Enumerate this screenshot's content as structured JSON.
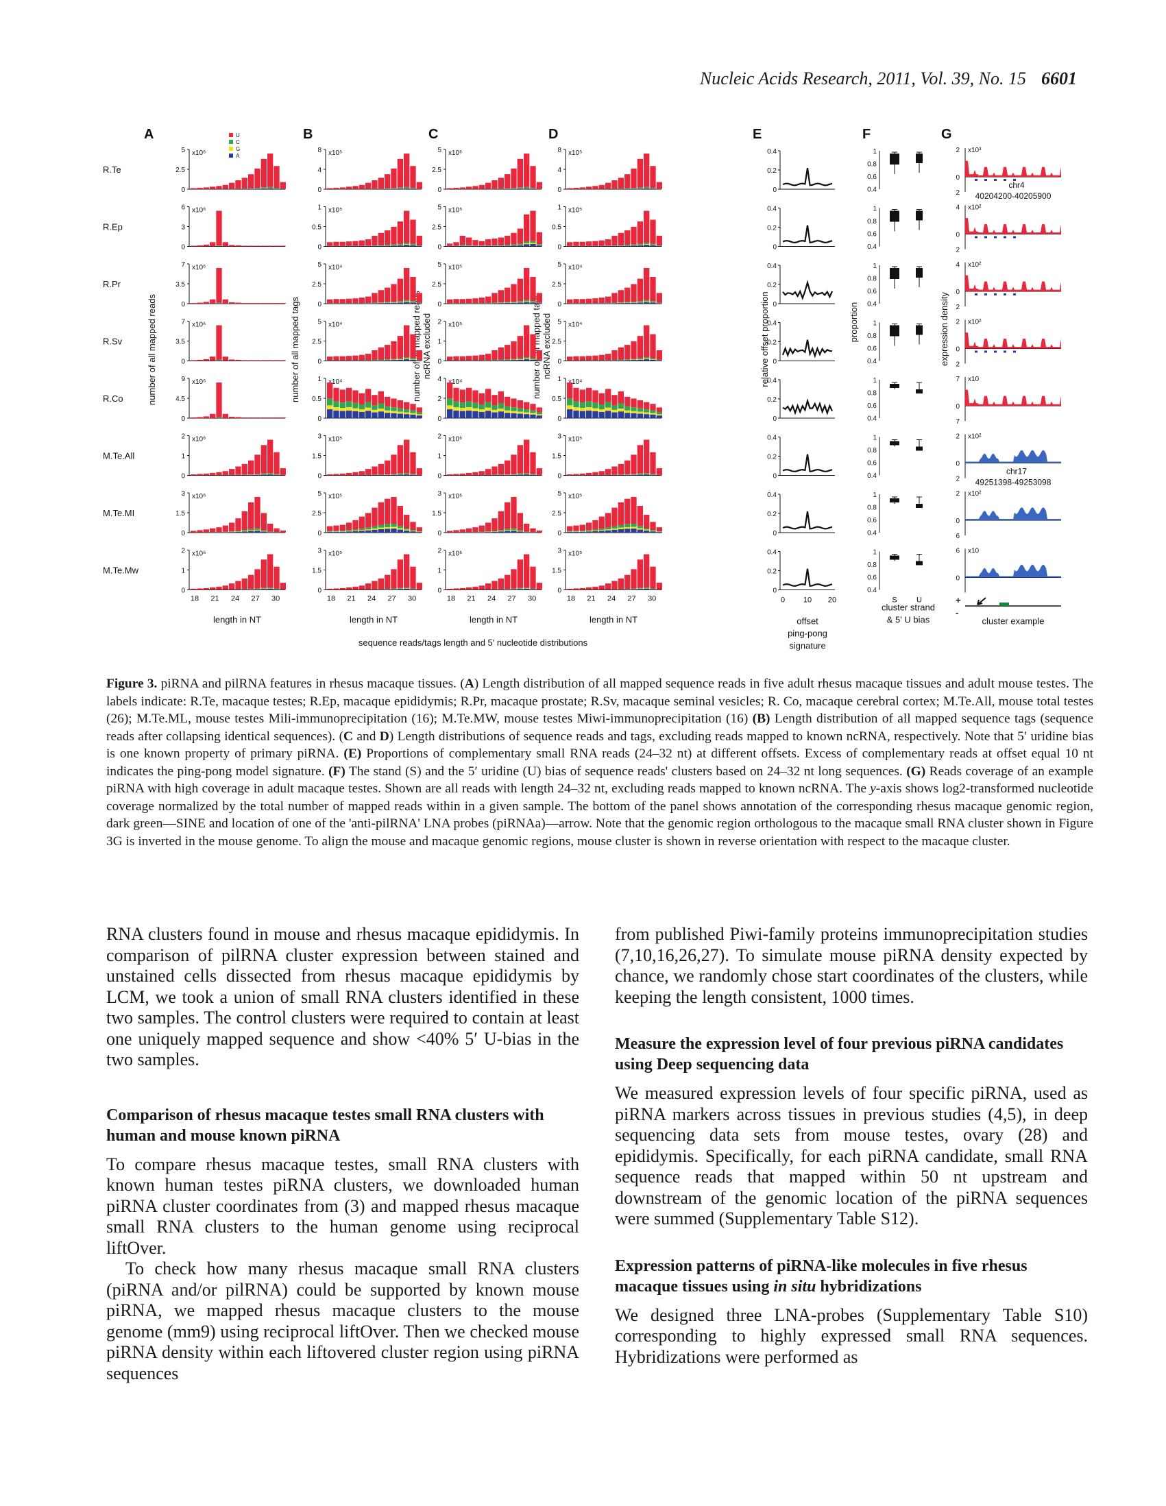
{
  "header": {
    "journal": "Nucleic Acids Research, 2011, Vol. 39, No. 15",
    "page": "6601"
  },
  "figure": {
    "panel_letters": [
      "A",
      "B",
      "C",
      "D",
      "E",
      "F",
      "G"
    ],
    "row_labels": [
      "R.Te",
      "R.Ep",
      "R.Pr",
      "R.Sv",
      "R.Co",
      "M.Te.All",
      "M.Te.MI",
      "M.Te.Mw"
    ],
    "legend": [
      "U",
      "C",
      "G",
      "A"
    ],
    "colors": {
      "U": "#e8283c",
      "C": "#2ea84a",
      "G": "#f2e020",
      "A": "#2a3c9c",
      "G_blue": "#3a66c0",
      "sine": "#0e8a3a"
    },
    "y_axis_titles": {
      "A": "number of all mapped reads",
      "B": "number of all mapped tags",
      "C": [
        "number of all mapped reads",
        "ncRNA excluded"
      ],
      "D": [
        "number of all mapped tags",
        "ncRNA excluded"
      ],
      "E": "relative offset proportion",
      "F": "proportion",
      "G": "expression density"
    },
    "x_labels": {
      "length": "length in NT",
      "group": "sequence reads/tags length and 5' nucleotide distributions",
      "E": [
        "offset",
        "ping-pong",
        "signature"
      ],
      "F": [
        "cluster strand",
        "& 5' U bias"
      ],
      "G": "cluster example"
    },
    "panels": {
      "A": {
        "multipliers": [
          "x10⁶",
          "x10⁶",
          "x10⁶",
          "x10⁶",
          "x10⁶",
          "x10⁶",
          "x10⁶",
          "x10⁶"
        ],
        "ticks": [
          [
            "5",
            "2.5",
            "0"
          ],
          [
            "6",
            "3",
            "0"
          ],
          [
            "7",
            "3.5",
            "0"
          ],
          [
            "7",
            "3.5",
            "0"
          ],
          [
            "9",
            "4.5",
            "0"
          ],
          [
            "2",
            "1",
            "0"
          ],
          [
            "3",
            "1.5",
            "0"
          ],
          [
            "2",
            "1",
            "0"
          ]
        ],
        "profiles": [
          "late",
          "peak",
          "peak",
          "peak",
          "peak",
          "late",
          "mid",
          "late"
        ]
      },
      "B": {
        "multipliers": [
          "x10⁵",
          "x10⁵",
          "x10⁴",
          "x10⁴",
          "x10⁴",
          "x10⁵",
          "x10⁵",
          "x10⁵"
        ],
        "ticks": [
          [
            "8",
            "4",
            "0"
          ],
          [
            "1",
            "0.5",
            "0"
          ],
          [
            "5",
            "2.5",
            "0"
          ],
          [
            "5",
            "2.5",
            "0"
          ],
          [
            "1",
            "0.5",
            "0"
          ],
          [
            "3",
            "1.5",
            "0"
          ],
          [
            "5",
            "2.5",
            "0"
          ],
          [
            "3",
            "1.5",
            "0"
          ]
        ],
        "profiles": [
          "late",
          "late_base",
          "late_base",
          "late_base",
          "flat",
          "late",
          "mid_mixed",
          "late"
        ]
      },
      "C": {
        "multipliers": [
          "x10⁶",
          "x10⁵",
          "x10⁵",
          "x10⁵",
          "x10⁴",
          "x10⁶",
          "x10⁶",
          "x10⁶"
        ],
        "ticks": [
          [
            "5",
            "2.5",
            "0"
          ],
          [
            "5",
            "2.5",
            "0"
          ],
          [
            "5",
            "2.5",
            "0"
          ],
          [
            "2",
            "1",
            "0"
          ],
          [
            "4",
            "2",
            "0"
          ],
          [
            "2",
            "1",
            "0"
          ],
          [
            "3",
            "1.5",
            "0"
          ],
          [
            "2",
            "1",
            "0"
          ]
        ],
        "profiles": [
          "late",
          "late_mixed",
          "late_base",
          "late_base",
          "flat",
          "late",
          "mid",
          "late"
        ]
      },
      "D": {
        "multipliers": [
          "x10⁵",
          "x10⁵",
          "x10⁴",
          "x10⁴",
          "x10⁴",
          "x10⁵",
          "x10⁵",
          "x10⁵"
        ],
        "ticks": [
          [
            "8",
            "4",
            "0"
          ],
          [
            "1",
            "0.5",
            "0"
          ],
          [
            "5",
            "2.5",
            "0"
          ],
          [
            "5",
            "2.5",
            "0"
          ],
          [
            "1",
            "0.5",
            "0"
          ],
          [
            "3",
            "1.5",
            "0"
          ],
          [
            "5",
            "2.5",
            "0"
          ],
          [
            "3",
            "1.5",
            "0"
          ]
        ],
        "profiles": [
          "late",
          "late_base",
          "late_base",
          "late_base",
          "flat",
          "late",
          "mid_mixed",
          "late"
        ]
      },
      "E": {
        "ticks": [
          "0.4",
          "0.2",
          "0"
        ],
        "x_ticks": [
          "0",
          "10",
          "20"
        ]
      },
      "F": {
        "ticks": [
          "1",
          "0.8",
          "0.6",
          "0.4"
        ],
        "x_ticks": [
          "S",
          "U"
        ]
      },
      "G": {
        "multipliers": [
          "x10³",
          "x10²",
          "x10²",
          "x10²",
          "x10",
          "x10²",
          "x10²",
          "x10"
        ],
        "top_ticks": [
          "2",
          "4",
          "4",
          "2",
          "7",
          "2",
          "2",
          "6"
        ],
        "bottom_ticks": [
          "2",
          "2",
          "2",
          "2",
          "7",
          "2",
          "6",
          ""
        ],
        "annotations": [
          [
            "chr4",
            "40204200-40205900"
          ],
          [
            "chr17",
            "49251398-49253098"
          ]
        ],
        "strand": [
          "+",
          "-"
        ]
      }
    },
    "x_ticks": [
      "18",
      "21",
      "24",
      "27",
      "30"
    ]
  },
  "caption": {
    "label": "Figure 3.",
    "s1": " piRNA and pilRNA features in rhesus macaque tissues. (",
    "A": "A",
    "s2": ") Length distribution of all mapped sequence reads in five adult rhesus macaque tissues and adult mouse testes. The labels indicate: R.Te, macaque testes; R.Ep, macaque epididymis; R.Pr, macaque prostate; R.Sv, macaque seminal vesicles; R. Co, macaque cerebral cortex; M.Te.All, mouse total testes (26); M.Te.ML, mouse testes Mili-immunoprecipitation (16); M.Te.MW, mouse testes Miwi-immunoprecipitation (16) ",
    "B": "(B)",
    "s3": " Length distribution of all mapped sequence tags (sequence reads after collapsing identical sequences). (",
    "C": "C",
    "s4": " and ",
    "D": "D",
    "s5": ") Length distributions of sequence reads and tags, excluding reads mapped to known ncRNA, respectively. Note that 5′ uridine bias is one known property of primary piRNA. ",
    "E": "(E)",
    "s6": " Proportions of complementary small RNA reads (24–32 nt) at different offsets. Excess of complementary reads at offset equal 10 nt indicates the ping-pong model signature. ",
    "F": "(F)",
    "s7": " The stand (S) and the 5′ uridine (U) bias of sequence reads' clusters based on 24–32 nt long sequences. ",
    "G": "(G)",
    "s8": " Reads coverage of an example piRNA with high coverage in adult macaque testes. Shown are all reads with length 24–32 nt, excluding reads mapped to known ncRNA. The ",
    "yaxis": "y",
    "s9": "-axis shows log2-transformed nucleotide coverage normalized by the total number of mapped reads within in a given sample. The bottom of the panel shows annotation of the corresponding rhesus macaque genomic region, dark green—SINE and location of one of the 'anti-pilRNA' LNA probes (piRNAa)—arrow. Note that the genomic region orthologous to the macaque small RNA cluster shown in Figure 3G is inverted in the mouse genome. To align the mouse and macaque genomic regions, mouse cluster is shown in reverse orientation with respect to the macaque cluster."
  },
  "body": {
    "left": {
      "p1": "RNA clusters found in mouse and rhesus macaque epididymis. In comparison of pilRNA cluster expression between stained and unstained cells dissected from rhesus macaque epididymis by LCM, we took a union of small RNA clusters identified in these two samples. The control clusters were required to contain at least one uniquely mapped sequence and show <40% 5′ U-bias in the two samples.",
      "h1": "Comparison of rhesus macaque testes small RNA clusters with human and mouse known piRNA",
      "p2": "To compare rhesus macaque testes, small RNA clusters with known human testes piRNA clusters, we downloaded human piRNA cluster coordinates from (3) and mapped rhesus macaque small RNA clusters to the human genome using reciprocal liftOver.",
      "p3": "To check how many rhesus macaque small RNA clusters (piRNA and/or pilRNA) could be supported by known mouse piRNA, we mapped rhesus macaque clusters to the mouse genome (mm9) using reciprocal liftOver. Then we checked mouse piRNA density within each liftovered cluster region using piRNA sequences"
    },
    "right": {
      "p1": "from published Piwi-family proteins immunoprecipitation studies (7,10,16,26,27). To simulate mouse piRNA density expected by chance, we randomly chose start coordinates of the clusters, while keeping the length consistent, 1000 times.",
      "h1": "Measure the expression level of four previous piRNA candidates using Deep sequencing data",
      "p2": "We measured expression levels of four specific piRNA, used as piRNA markers across tissues in previous studies (4,5), in deep sequencing data sets from mouse testes, ovary (28) and epididymis. Specifically, for each piRNA candidate, small RNA sequence reads that mapped within 50 nt upstream and downstream of the genomic location of the piRNA sequences were summed (Supplementary Table S12).",
      "h2a": "Expression patterns of piRNA-like molecules in five rhesus macaque tissues using ",
      "h2b": "in situ",
      "h2c": " hybridizations",
      "p3": "We designed three LNA-probes (Supplementary Table S10) corresponding to highly expressed small RNA sequences. Hybridizations were performed as"
    }
  }
}
